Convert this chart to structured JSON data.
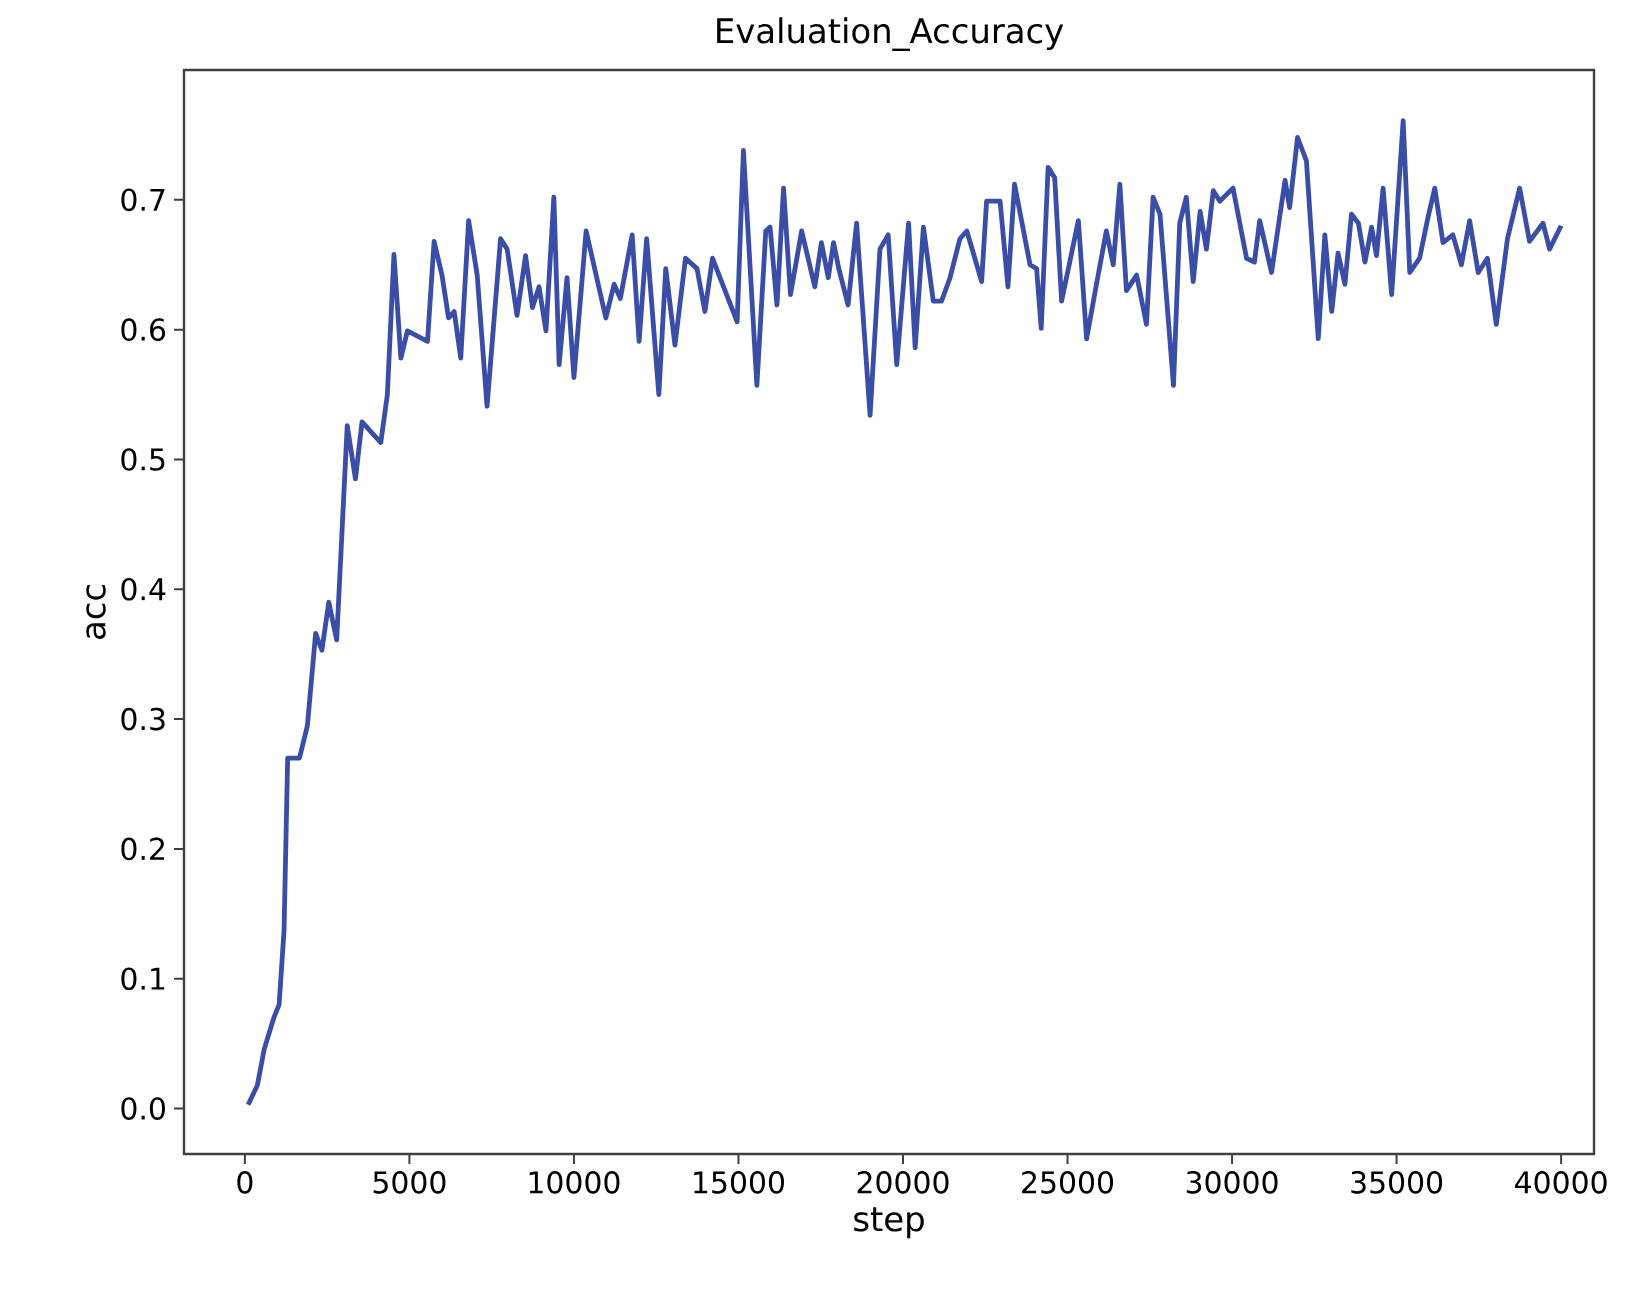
{
  "chart_data": {
    "type": "line",
    "title": "Evaluation_Accuracy",
    "xlabel": "step",
    "ylabel": "acc",
    "xlim": [
      -1850,
      41000
    ],
    "ylim": [
      -0.035,
      0.8
    ],
    "xticks": [
      0,
      5000,
      10000,
      15000,
      20000,
      25000,
      30000,
      35000,
      40000
    ],
    "yticks": [
      {
        "value": 0,
        "label": "0.0"
      },
      {
        "value": 0.1,
        "label": "0.1"
      },
      {
        "value": 0.2,
        "label": "0.2"
      },
      {
        "value": 0.3,
        "label": "0.3"
      },
      {
        "value": 0.4,
        "label": "0.4"
      },
      {
        "value": 0.5,
        "label": "0.5"
      },
      {
        "value": 0.6,
        "label": "0.6"
      },
      {
        "value": 0.7,
        "label": "0.7"
      }
    ],
    "series": [
      {
        "color": "#3a4ea8",
        "x": [
          100,
          380,
          590,
          880,
          1040,
          1190,
          1300,
          1660,
          1900,
          2150,
          2340,
          2550,
          2790,
          3110,
          3360,
          3560,
          4130,
          4330,
          4530,
          4740,
          4940,
          5550,
          5750,
          5990,
          6190,
          6360,
          6560,
          6800,
          7060,
          7360,
          7770,
          7970,
          8270,
          8530,
          8740,
          8940,
          9150,
          9390,
          9550,
          9790,
          10000,
          10370,
          10970,
          11220,
          11410,
          11770,
          11980,
          12210,
          12580,
          12790,
          13070,
          13390,
          13740,
          13980,
          14210,
          14960,
          15150,
          15560,
          15830,
          15960,
          16170,
          16370,
          16580,
          16920,
          17320,
          17520,
          17730,
          17890,
          18050,
          18330,
          18590,
          19000,
          19300,
          19550,
          19810,
          20170,
          20370,
          20620,
          20920,
          21170,
          21430,
          21730,
          21940,
          22390,
          22540,
          22950,
          23190,
          23390,
          23860,
          24060,
          24200,
          24410,
          24610,
          24820,
          25330,
          25580,
          25880,
          26180,
          26390,
          26590,
          26790,
          27100,
          27400,
          27600,
          27810,
          28220,
          28410,
          28610,
          28820,
          29030,
          29220,
          29430,
          29630,
          30030,
          30440,
          30680,
          30840,
          31200,
          31610,
          31750,
          31990,
          32260,
          32620,
          32820,
          33030,
          33220,
          33430,
          33630,
          33840,
          34040,
          34240,
          34390,
          34590,
          34850,
          35200,
          35400,
          35700,
          35950,
          36160,
          36410,
          36710,
          36970,
          37220,
          37480,
          37760,
          38030,
          38370,
          38740,
          39040,
          39450,
          39650,
          40000
        ],
        "values": [
          0.003,
          0.018,
          0.046,
          0.07,
          0.08,
          0.137,
          0.27,
          0.27,
          0.295,
          0.366,
          0.353,
          0.39,
          0.361,
          0.526,
          0.485,
          0.529,
          0.513,
          0.55,
          0.658,
          0.578,
          0.599,
          0.591,
          0.668,
          0.642,
          0.609,
          0.614,
          0.578,
          0.684,
          0.642,
          0.541,
          0.67,
          0.662,
          0.611,
          0.657,
          0.617,
          0.633,
          0.599,
          0.702,
          0.573,
          0.64,
          0.563,
          0.676,
          0.609,
          0.635,
          0.624,
          0.673,
          0.591,
          0.67,
          0.55,
          0.647,
          0.588,
          0.655,
          0.647,
          0.614,
          0.655,
          0.606,
          0.738,
          0.557,
          0.676,
          0.679,
          0.619,
          0.709,
          0.627,
          0.676,
          0.633,
          0.667,
          0.64,
          0.667,
          0.647,
          0.619,
          0.682,
          0.534,
          0.662,
          0.673,
          0.573,
          0.682,
          0.586,
          0.679,
          0.622,
          0.622,
          0.64,
          0.67,
          0.676,
          0.637,
          0.699,
          0.699,
          0.633,
          0.712,
          0.65,
          0.647,
          0.601,
          0.725,
          0.717,
          0.622,
          0.684,
          0.593,
          0.635,
          0.676,
          0.65,
          0.712,
          0.63,
          0.642,
          0.604,
          0.702,
          0.689,
          0.557,
          0.682,
          0.702,
          0.637,
          0.691,
          0.662,
          0.707,
          0.699,
          0.709,
          0.655,
          0.652,
          0.684,
          0.644,
          0.715,
          0.694,
          0.748,
          0.73,
          0.593,
          0.673,
          0.614,
          0.659,
          0.635,
          0.689,
          0.682,
          0.652,
          0.679,
          0.657,
          0.709,
          0.627,
          0.761,
          0.644,
          0.655,
          0.686,
          0.709,
          0.667,
          0.673,
          0.65,
          0.684,
          0.644,
          0.655,
          0.604,
          0.67,
          0.709,
          0.668,
          0.682,
          0.662,
          0.68
        ]
      }
    ]
  }
}
